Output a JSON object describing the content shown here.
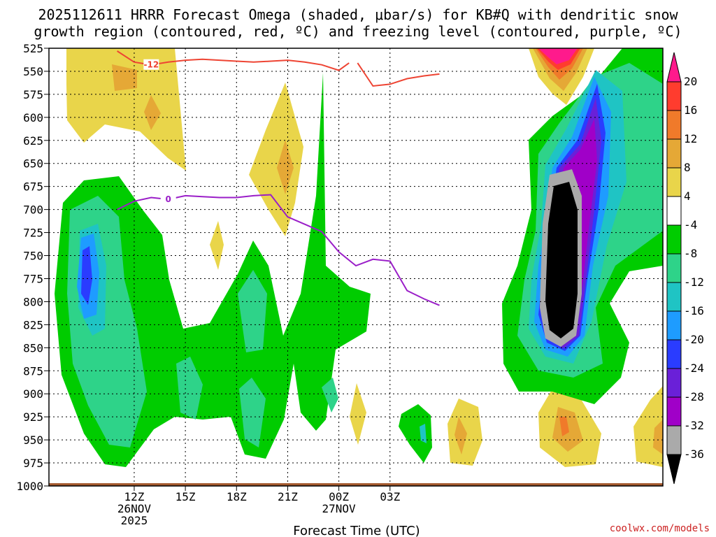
{
  "page": {
    "title_line1": "2025112611 HRRR Forecast Omega (shaded, μbar/s) for KB#Q with dendritic snow",
    "title_line2": "growth region (contoured, red, ºC) and freezing level (contoured, purple, ºC)",
    "credit": "coolwx.com/models"
  },
  "chart_data": {
    "type": "heatmap",
    "title": "2025112611 HRRR Forecast Omega (shaded, μbar/s) for KB#Q with dendritic snow growth region (contoured, red, ºC) and freezing level (contoured, purple, ºC)",
    "xlabel": "Forecast Time (UTC)",
    "ylabel": "",
    "x_range_hours_from_12Z": [
      -5,
      31
    ],
    "y_range_mb": [
      1000,
      525
    ],
    "y_ticks": [
      525,
      550,
      575,
      600,
      625,
      650,
      675,
      700,
      725,
      750,
      775,
      800,
      825,
      850,
      875,
      900,
      925,
      950,
      975,
      1000
    ],
    "x_ticks": [
      {
        "h": 0,
        "line1": "12Z",
        "line2": "26NOV",
        "line3": "2025"
      },
      {
        "h": 3,
        "line1": "15Z",
        "line2": "",
        "line3": ""
      },
      {
        "h": 6,
        "line1": "18Z",
        "line2": "",
        "line3": ""
      },
      {
        "h": 9,
        "line1": "21Z",
        "line2": "",
        "line3": ""
      },
      {
        "h": 12,
        "line1": "00Z",
        "line2": "27NOV",
        "line3": ""
      },
      {
        "h": 15,
        "line1": "03Z",
        "line2": "",
        "line3": ""
      }
    ],
    "colorbar": {
      "labels": [
        "20",
        "16",
        "12",
        "8",
        "4",
        "-4",
        "-8",
        "-12",
        "-16",
        "-20",
        "-24",
        "-28",
        "-32",
        "-36"
      ],
      "bands": [
        {
          "color": "#ff3c2e"
        },
        {
          "color": "#f07a2a"
        },
        {
          "color": "#e5a836"
        },
        {
          "color": "#e9d54a"
        },
        {
          "color": "#ffffff"
        },
        {
          "color": "#00cc00"
        },
        {
          "color": "#2ed389"
        },
        {
          "color": "#1fc4c4"
        },
        {
          "color": "#1e9cff"
        },
        {
          "color": "#2a3cff"
        },
        {
          "color": "#6a20d8"
        },
        {
          "color": "#a000c8"
        },
        {
          "color": "#aaaaaa"
        }
      ],
      "top_color": "#ff1a8c",
      "bottom_color": "#000000"
    },
    "series": [
      {
        "name": "Dendritic snow growth region (-12 ºC)",
        "color": "#ee4433",
        "label": "-12",
        "x": [
          -1,
          0,
          1,
          2,
          3,
          4,
          5,
          6,
          7,
          8,
          9,
          10,
          11,
          12,
          12.6
        ],
        "y": [
          528,
          540,
          543,
          540,
          538,
          537,
          538,
          539,
          540,
          539,
          538,
          540,
          543,
          549,
          541
        ]
      },
      {
        "name": "Dendritic snow growth region (-12 ºC) east",
        "color": "#ee4433",
        "label": "",
        "x": [
          13.1,
          14,
          15,
          16,
          17,
          17.9
        ],
        "y": [
          541,
          566,
          564,
          558,
          555,
          553
        ]
      },
      {
        "name": "Freezing level (0 ºC)",
        "color": "#9a1ec8",
        "label": "0",
        "x": [
          -1,
          0,
          1,
          2,
          3,
          4,
          5,
          6,
          7,
          8,
          9,
          10,
          11,
          12,
          13,
          14,
          15,
          16,
          17,
          17.9
        ],
        "y": [
          700,
          691,
          687,
          689,
          685,
          686,
          687,
          687,
          685,
          684,
          708,
          716,
          724,
          746,
          761,
          754,
          756,
          788,
          797,
          804
        ]
      }
    ],
    "surface": {
      "name": "terrain",
      "color": "#a35a2e",
      "top_mb": 997
    }
  }
}
